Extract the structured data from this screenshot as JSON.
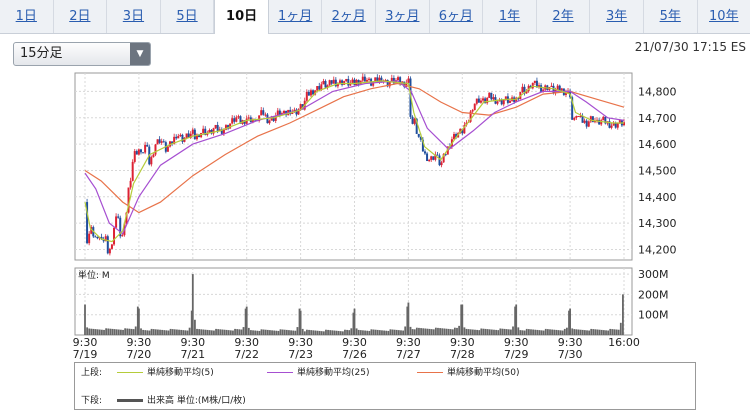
{
  "tabs": [
    {
      "label": "1日",
      "active": false
    },
    {
      "label": "2日",
      "active": false
    },
    {
      "label": "3日",
      "active": false
    },
    {
      "label": "5日",
      "active": false
    },
    {
      "label": "10日",
      "active": true
    },
    {
      "label": "1ヶ月",
      "active": false
    },
    {
      "label": "2ヶ月",
      "active": false
    },
    {
      "label": "3ヶ月",
      "active": false
    },
    {
      "label": "6ヶ月",
      "active": false
    },
    {
      "label": "1年",
      "active": false
    },
    {
      "label": "2年",
      "active": false
    },
    {
      "label": "3年",
      "active": false
    },
    {
      "label": "5年",
      "active": false
    },
    {
      "label": "10年",
      "active": false
    }
  ],
  "interval_select": {
    "value": "15分足"
  },
  "timestamp": "21/07/30 17:15 ES",
  "legend": {
    "upper_label": "上段:",
    "lower_label": "下段:",
    "ma5": {
      "label": "単純移動平均(5)",
      "color": "#b5cc3a"
    },
    "ma25": {
      "label": "単純移動平均(25)",
      "color": "#a64fd1"
    },
    "ma50": {
      "label": "単純移動平均(50)",
      "color": "#e8734a"
    },
    "volume": {
      "label": "出来高 単位:(M株/口/枚)",
      "color": "#555555"
    }
  },
  "chart_data": [
    {
      "type": "candlestick",
      "y_ticks": [
        "14,800",
        "14,700",
        "14,600",
        "14,500",
        "14,400",
        "14,300",
        "14,200"
      ],
      "ylim": [
        14160,
        14870
      ],
      "x_ticks": [
        {
          "time": "9:30",
          "date": "7/19"
        },
        {
          "time": "9:30",
          "date": "7/20"
        },
        {
          "time": "9:30",
          "date": "7/21"
        },
        {
          "time": "9:30",
          "date": "7/22"
        },
        {
          "time": "9:30",
          "date": "7/23"
        },
        {
          "time": "9:30",
          "date": "7/26"
        },
        {
          "time": "9:30",
          "date": "7/27"
        },
        {
          "time": "9:30",
          "date": "7/28"
        },
        {
          "time": "9:30",
          "date": "7/29"
        },
        {
          "time": "9:30",
          "date": "7/30"
        },
        {
          "time": "16:00",
          "date": ""
        }
      ],
      "price_path": [
        [
          0,
          14380
        ],
        [
          0.02,
          14250
        ],
        [
          0.06,
          14200
        ],
        [
          0.1,
          14320
        ],
        [
          0.14,
          14260
        ],
        [
          0.18,
          14230
        ],
        [
          0.25,
          14260
        ],
        [
          0.3,
          14220
        ],
        [
          0.38,
          14250
        ],
        [
          0.42,
          14200
        ],
        [
          0.5,
          14210
        ],
        [
          0.55,
          14320
        ],
        [
          0.6,
          14330
        ],
        [
          0.65,
          14260
        ],
        [
          0.7,
          14250
        ],
        [
          0.75,
          14300
        ],
        [
          0.8,
          14420
        ],
        [
          0.85,
          14480
        ],
        [
          0.9,
          14560
        ],
        [
          1.0,
          14580
        ],
        [
          1.05,
          14550
        ],
        [
          1.1,
          14600
        ],
        [
          1.15,
          14580
        ],
        [
          1.2,
          14520
        ],
        [
          1.25,
          14560
        ],
        [
          1.3,
          14600
        ],
        [
          1.4,
          14620
        ],
        [
          1.5,
          14580
        ],
        [
          1.6,
          14600
        ],
        [
          1.7,
          14640
        ],
        [
          1.8,
          14620
        ],
        [
          1.9,
          14630
        ],
        [
          2.0,
          14640
        ],
        [
          2.05,
          14620
        ],
        [
          2.1,
          14640
        ],
        [
          2.2,
          14650
        ],
        [
          2.3,
          14640
        ],
        [
          2.4,
          14660
        ],
        [
          2.5,
          14650
        ],
        [
          2.6,
          14660
        ],
        [
          2.7,
          14680
        ],
        [
          2.8,
          14700
        ],
        [
          2.9,
          14680
        ],
        [
          3.0,
          14700
        ],
        [
          3.05,
          14690
        ],
        [
          3.1,
          14700
        ],
        [
          3.15,
          14680
        ],
        [
          3.2,
          14700
        ],
        [
          3.3,
          14720
        ],
        [
          3.4,
          14690
        ],
        [
          3.5,
          14700
        ],
        [
          3.6,
          14720
        ],
        [
          3.7,
          14710
        ],
        [
          3.8,
          14730
        ],
        [
          3.9,
          14720
        ],
        [
          4.0,
          14740
        ],
        [
          4.05,
          14740
        ],
        [
          4.1,
          14780
        ],
        [
          4.2,
          14800
        ],
        [
          4.3,
          14810
        ],
        [
          4.4,
          14830
        ],
        [
          4.5,
          14820
        ],
        [
          4.6,
          14840
        ],
        [
          4.7,
          14830
        ],
        [
          4.8,
          14840
        ],
        [
          4.9,
          14830
        ],
        [
          5.0,
          14830
        ],
        [
          5.05,
          14840
        ],
        [
          5.2,
          14850
        ],
        [
          5.3,
          14830
        ],
        [
          5.4,
          14840
        ],
        [
          5.5,
          14850
        ],
        [
          5.6,
          14830
        ],
        [
          5.7,
          14840
        ],
        [
          5.8,
          14840
        ],
        [
          5.9,
          14830
        ],
        [
          6.0,
          14840
        ],
        [
          6.02,
          14820
        ],
        [
          6.05,
          14650
        ],
        [
          6.1,
          14700
        ],
        [
          6.15,
          14650
        ],
        [
          6.2,
          14620
        ],
        [
          6.3,
          14560
        ],
        [
          6.4,
          14540
        ],
        [
          6.5,
          14560
        ],
        [
          6.6,
          14520
        ],
        [
          6.7,
          14570
        ],
        [
          6.8,
          14620
        ],
        [
          6.9,
          14640
        ],
        [
          7.0,
          14650
        ],
        [
          7.02,
          14700
        ],
        [
          7.05,
          14650
        ],
        [
          7.1,
          14680
        ],
        [
          7.2,
          14750
        ],
        [
          7.3,
          14770
        ],
        [
          7.4,
          14760
        ],
        [
          7.5,
          14780
        ],
        [
          7.6,
          14770
        ],
        [
          7.7,
          14760
        ],
        [
          7.8,
          14770
        ],
        [
          7.9,
          14760
        ],
        [
          8.0,
          14770
        ],
        [
          8.05,
          14790
        ],
        [
          8.1,
          14810
        ],
        [
          8.2,
          14800
        ],
        [
          8.3,
          14830
        ],
        [
          8.4,
          14820
        ],
        [
          8.5,
          14810
        ],
        [
          8.6,
          14820
        ],
        [
          8.7,
          14800
        ],
        [
          8.8,
          14810
        ],
        [
          8.9,
          14800
        ],
        [
          9.0,
          14790
        ],
        [
          9.02,
          14760
        ],
        [
          9.05,
          14650
        ],
        [
          9.1,
          14720
        ],
        [
          9.2,
          14690
        ],
        [
          9.3,
          14680
        ],
        [
          9.4,
          14700
        ],
        [
          9.5,
          14680
        ],
        [
          9.6,
          14690
        ],
        [
          9.7,
          14680
        ],
        [
          9.8,
          14670
        ],
        [
          9.9,
          14680
        ],
        [
          10.0,
          14680
        ]
      ],
      "ma5": [
        [
          0,
          14380
        ],
        [
          0.1,
          14280
        ],
        [
          0.3,
          14240
        ],
        [
          0.5,
          14230
        ],
        [
          0.7,
          14270
        ],
        [
          0.9,
          14450
        ],
        [
          1.2,
          14560
        ],
        [
          1.6,
          14600
        ],
        [
          2.0,
          14630
        ],
        [
          2.5,
          14650
        ],
        [
          3.0,
          14690
        ],
        [
          3.5,
          14700
        ],
        [
          4.0,
          14730
        ],
        [
          4.3,
          14800
        ],
        [
          4.7,
          14830
        ],
        [
          5.0,
          14830
        ],
        [
          5.5,
          14840
        ],
        [
          6.0,
          14830
        ],
        [
          6.1,
          14720
        ],
        [
          6.3,
          14590
        ],
        [
          6.6,
          14540
        ],
        [
          6.9,
          14630
        ],
        [
          7.1,
          14680
        ],
        [
          7.4,
          14760
        ],
        [
          7.8,
          14770
        ],
        [
          8.0,
          14770
        ],
        [
          8.3,
          14820
        ],
        [
          8.7,
          14810
        ],
        [
          9.0,
          14790
        ],
        [
          9.1,
          14720
        ],
        [
          9.4,
          14690
        ],
        [
          9.8,
          14680
        ],
        [
          10.0,
          14680
        ]
      ],
      "ma25": [
        [
          0,
          14490
        ],
        [
          0.2,
          14430
        ],
        [
          0.45,
          14300
        ],
        [
          0.7,
          14260
        ],
        [
          1.0,
          14400
        ],
        [
          1.4,
          14520
        ],
        [
          2.0,
          14600
        ],
        [
          2.6,
          14640
        ],
        [
          3.2,
          14690
        ],
        [
          3.6,
          14710
        ],
        [
          4.0,
          14730
        ],
        [
          4.6,
          14800
        ],
        [
          5.2,
          14830
        ],
        [
          5.8,
          14840
        ],
        [
          6.05,
          14800
        ],
        [
          6.35,
          14660
        ],
        [
          6.75,
          14580
        ],
        [
          7.2,
          14650
        ],
        [
          7.6,
          14720
        ],
        [
          8.0,
          14760
        ],
        [
          8.5,
          14800
        ],
        [
          9.0,
          14800
        ],
        [
          9.3,
          14760
        ],
        [
          9.7,
          14700
        ],
        [
          10.0,
          14690
        ]
      ],
      "ma50": [
        [
          0,
          14500
        ],
        [
          0.3,
          14460
        ],
        [
          0.7,
          14380
        ],
        [
          1.0,
          14340
        ],
        [
          1.4,
          14380
        ],
        [
          2.0,
          14480
        ],
        [
          2.6,
          14560
        ],
        [
          3.2,
          14630
        ],
        [
          3.8,
          14680
        ],
        [
          4.3,
          14730
        ],
        [
          4.8,
          14780
        ],
        [
          5.3,
          14810
        ],
        [
          5.8,
          14830
        ],
        [
          6.2,
          14810
        ],
        [
          6.6,
          14760
        ],
        [
          7.0,
          14720
        ],
        [
          7.5,
          14710
        ],
        [
          8.0,
          14740
        ],
        [
          8.5,
          14790
        ],
        [
          9.0,
          14800
        ],
        [
          9.5,
          14770
        ],
        [
          10.0,
          14740
        ]
      ]
    },
    {
      "type": "bar",
      "unit_label": "単位: M",
      "y_ticks": [
        "300M",
        "200M",
        "100M"
      ],
      "ylim": [
        0,
        330
      ],
      "daily_volume": [
        {
          "open": 150,
          "mid": 25,
          "close": 140
        },
        {
          "open": 130,
          "mid": 22,
          "close": 120
        },
        {
          "open": 300,
          "mid": 22,
          "close": 130
        },
        {
          "open": 140,
          "mid": 20,
          "close": 130
        },
        {
          "open": 120,
          "mid": 18,
          "close": 110
        },
        {
          "open": 130,
          "mid": 20,
          "close": 140
        },
        {
          "open": 160,
          "mid": 28,
          "close": 150
        },
        {
          "open": 150,
          "mid": 24,
          "close": 140
        },
        {
          "open": 150,
          "mid": 22,
          "close": 120
        },
        {
          "open": 130,
          "mid": 22,
          "close": 200
        }
      ]
    }
  ]
}
